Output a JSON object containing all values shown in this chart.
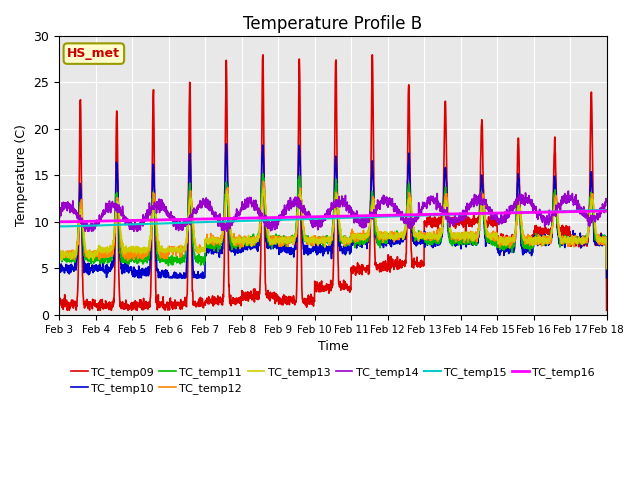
{
  "title": "Temperature Profile B",
  "xlabel": "Time",
  "ylabel": "Temperature (C)",
  "ylim": [
    0,
    30
  ],
  "xtick_labels": [
    "Feb 3",
    "Feb 4",
    "Feb 5",
    "Feb 6",
    "Feb 7",
    "Feb 8",
    "Feb 9",
    "Feb 10",
    "Feb 11",
    "Feb 12",
    "Feb 13",
    "Feb 14",
    "Feb 15",
    "Feb 16",
    "Feb 17",
    "Feb 18"
  ],
  "series_names": [
    "TC_temp09",
    "TC_temp10",
    "TC_temp11",
    "TC_temp12",
    "TC_temp13",
    "TC_temp14",
    "TC_temp15",
    "TC_temp16"
  ],
  "series_colors": [
    "#dd0000",
    "#0000cc",
    "#00bb00",
    "#ff8800",
    "#cccc00",
    "#9900cc",
    "#00cccc",
    "#ff00ff"
  ],
  "series_linewidths": [
    1.2,
    1.2,
    1.2,
    1.2,
    1.2,
    1.2,
    1.5,
    2.0
  ],
  "annotation_text": "HS_met",
  "annotation_color": "#cc0000",
  "annotation_bg": "#ffffcc",
  "annotation_border": "#999900",
  "background_color": "#e8e8e8",
  "fig_bg": "#ffffff",
  "grid_color": "#ffffff",
  "title_fontsize": 12
}
